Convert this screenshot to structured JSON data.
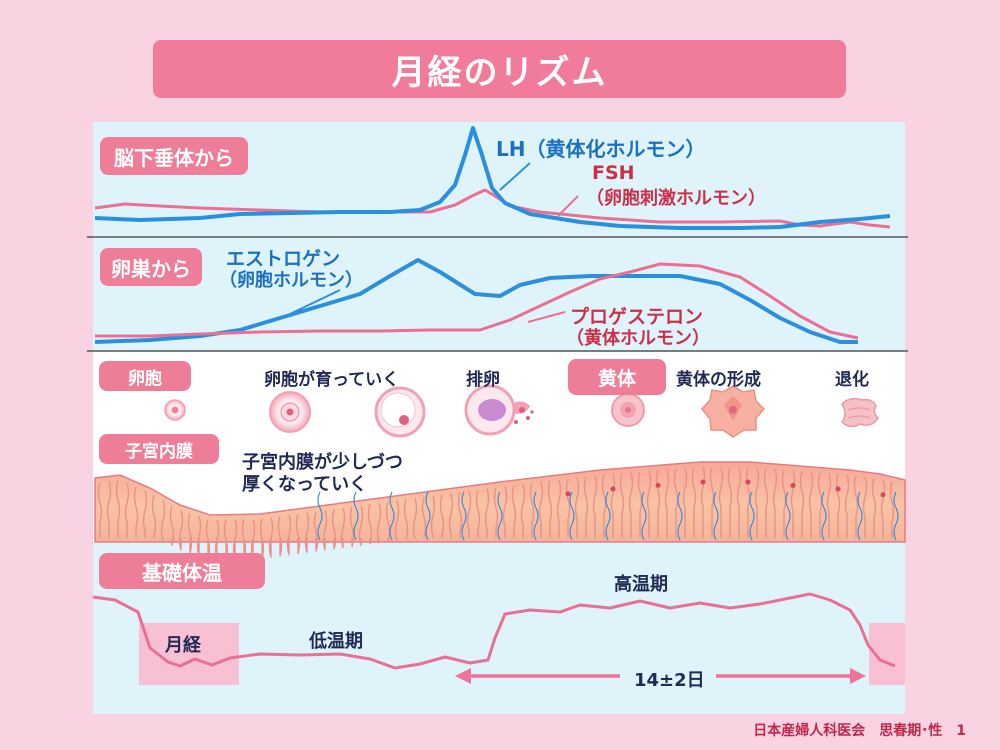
{
  "title": "月経のリズム",
  "sections": {
    "pituitary": "脳下垂体から",
    "ovary": "卵巣から",
    "follicle": "卵胞",
    "corpus": "黄体",
    "endometrium": "子宮内膜",
    "bbt": "基礎体温"
  },
  "hormones": {
    "lh": "LH（黄体化ホルモン）",
    "fsh_1": "FSH",
    "fsh_2": "（卵胞刺激ホルモン）",
    "estrogen_1": "エストロゲン",
    "estrogen_2": "（卵胞ホルモン）",
    "progesterone_1": "プロゲステロン",
    "progesterone_2": "（黄体ホルモン）"
  },
  "stages": {
    "growing": "卵胞が育っていく",
    "ovulation": "排卵",
    "forming": "黄体の形成",
    "regression": "退化"
  },
  "endometrium_note_1": "子宮内膜が少しづつ",
  "endometrium_note_2": "厚くなっていく",
  "bbt_labels": {
    "menses": "月経",
    "low": "低温期",
    "high": "高温期",
    "interval": "14±2日"
  },
  "footer": "日本産婦人科医会　思春期･性　1",
  "colors": {
    "background": "#f9d3e2",
    "panel": "#dff4fa",
    "label_fill": "#ee7e98",
    "blue_curve": "#2b8fe0",
    "pink_curve": "#ec6f92",
    "navy_text": "#1f2a55",
    "red_text": "#cc3048"
  }
}
